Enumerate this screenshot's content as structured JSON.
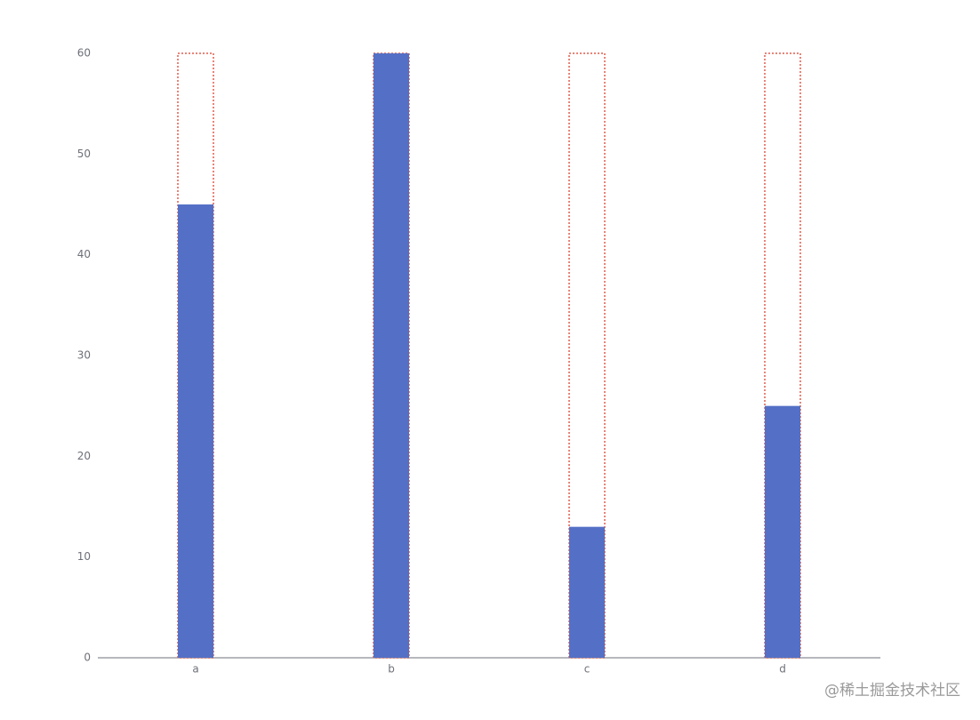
{
  "chart_data": {
    "type": "bar",
    "categories": [
      "a",
      "b",
      "c",
      "d"
    ],
    "values": [
      45,
      60,
      13,
      25
    ],
    "color": "#5470c6",
    "background_values": [
      60,
      60,
      60,
      60
    ],
    "background_border_color": "#e05b4b",
    "ylim": [
      0,
      60
    ],
    "yticks": [
      0,
      10,
      20,
      30,
      40,
      50,
      60
    ],
    "grid": false,
    "watermark": "@稀土掘金技术社区"
  }
}
